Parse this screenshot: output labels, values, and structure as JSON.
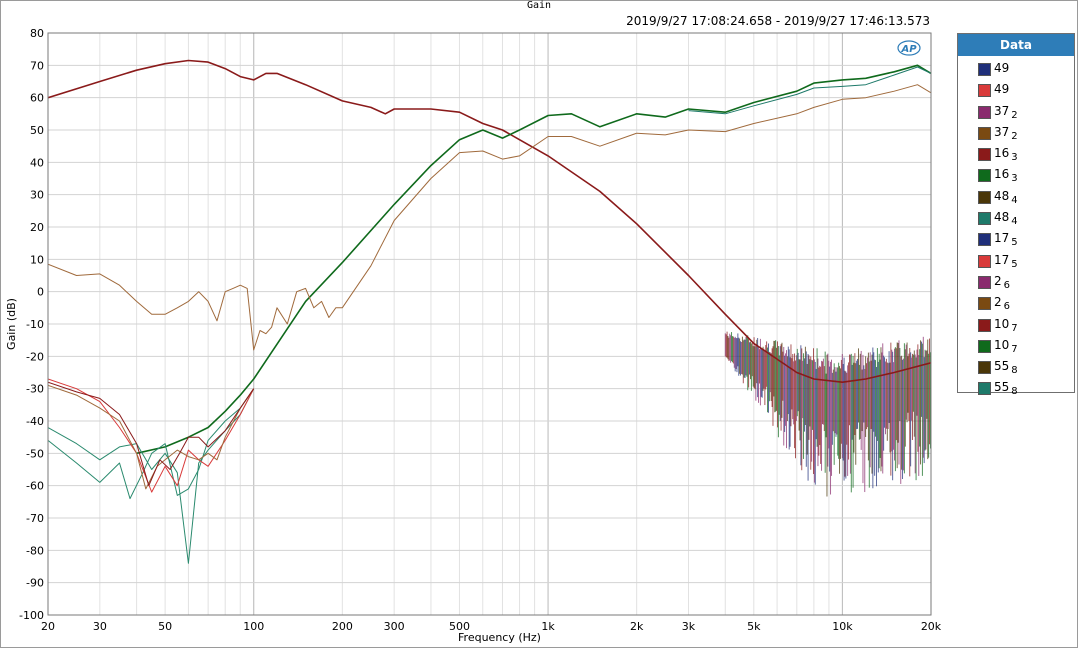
{
  "window": {
    "title": "Gain",
    "timestamp": "2019/9/27 17:08:24.658 - 2019/9/27 17:46:13.573",
    "logo_text": "AP"
  },
  "legend": {
    "header": "Data",
    "items": [
      {
        "name": "49",
        "sub": "",
        "color": "#1f2f7a"
      },
      {
        "name": "49",
        "sub": "",
        "color": "#d93a3a"
      },
      {
        "name": "37",
        "sub": "2",
        "color": "#8a2a6e"
      },
      {
        "name": "37",
        "sub": "2",
        "color": "#7a4a12"
      },
      {
        "name": "16",
        "sub": "3",
        "color": "#8a1a1a"
      },
      {
        "name": "16",
        "sub": "3",
        "color": "#0f6a1c"
      },
      {
        "name": "48",
        "sub": "4",
        "color": "#4a3608"
      },
      {
        "name": "48",
        "sub": "4",
        "color": "#1e7a6a"
      },
      {
        "name": "17",
        "sub": "5",
        "color": "#1f2f7a"
      },
      {
        "name": "17",
        "sub": "5",
        "color": "#d93a3a"
      },
      {
        "name": "2",
        "sub": "6",
        "color": "#8a2a6e"
      },
      {
        "name": "2",
        "sub": "6",
        "color": "#7a4a12"
      },
      {
        "name": "10",
        "sub": "7",
        "color": "#8a1a1a"
      },
      {
        "name": "10",
        "sub": "7",
        "color": "#0f6a1c"
      },
      {
        "name": "55",
        "sub": "8",
        "color": "#4a3608"
      },
      {
        "name": "55",
        "sub": "8",
        "color": "#1e7a6a"
      }
    ]
  },
  "chart_data": {
    "type": "line",
    "title": "Gain",
    "xlabel": "Frequency (Hz)",
    "ylabel": "Gain (dB)",
    "xscale": "log",
    "xlim": [
      20,
      20000
    ],
    "ylim": [
      -100,
      80
    ],
    "grid": true,
    "legend_position": "right",
    "x_ticks": [
      20,
      30,
      50,
      100,
      200,
      300,
      500,
      1000,
      2000,
      3000,
      5000,
      10000,
      20000
    ],
    "x_tick_labels": [
      "20",
      "30",
      "50",
      "100",
      "200",
      "300",
      "500",
      "1k",
      "2k",
      "3k",
      "5k",
      "10k",
      "20k"
    ],
    "y_ticks": [
      -100,
      -90,
      -80,
      -70,
      -60,
      -50,
      -40,
      -30,
      -20,
      -10,
      0,
      10,
      20,
      30,
      40,
      50,
      60,
      70,
      80
    ],
    "series": [
      {
        "name": "16 3",
        "color": "#8a1a1a",
        "width": 1.6,
        "x": [
          20,
          30,
          40,
          50,
          60,
          70,
          80,
          90,
          100,
          110,
          120,
          150,
          200,
          250,
          280,
          300,
          350,
          400,
          500,
          600,
          700,
          800,
          1000,
          1500,
          2000,
          3000,
          4000,
          5000,
          7000,
          8000,
          10000,
          12000,
          15000,
          20000
        ],
        "y": [
          60,
          65,
          68.5,
          70.5,
          71.5,
          71,
          69,
          66.5,
          65.5,
          67.5,
          67.5,
          64,
          59,
          57,
          55,
          56.5,
          56.5,
          56.5,
          55.5,
          52,
          50,
          47,
          42,
          31,
          21,
          5,
          -7,
          -16,
          -25,
          -27,
          -28,
          -27,
          -25,
          -22
        ]
      },
      {
        "name": "10 7",
        "color": "#0f6a1c",
        "width": 1.6,
        "x": [
          40,
          50,
          60,
          70,
          80,
          90,
          100,
          150,
          200,
          300,
          400,
          500,
          600,
          700,
          800,
          1000,
          1200,
          1500,
          2000,
          2500,
          3000,
          4000,
          5000,
          7000,
          8000,
          10000,
          12000,
          15000,
          18000,
          20000
        ],
        "y": [
          -50,
          -48,
          -45,
          -42,
          -37,
          -32,
          -27,
          -3,
          9,
          27,
          39,
          47,
          50,
          47.5,
          50,
          54.5,
          55,
          51,
          55,
          54,
          56.5,
          55.5,
          58.5,
          62,
          64.5,
          65.5,
          66,
          68,
          70,
          67.5
        ]
      },
      {
        "name": "55 8",
        "color": "#1e7a6a",
        "width": 1,
        "x": [
          3000,
          4000,
          5000,
          7000,
          8000,
          10000,
          12000,
          15000,
          18000,
          20000
        ],
        "y": [
          56,
          55,
          57.5,
          61,
          63,
          63.5,
          64,
          67,
          69.5,
          67.5
        ]
      },
      {
        "name": "37 2",
        "color": "#a06a3c",
        "width": 1,
        "x": [
          20,
          25,
          30,
          35,
          40,
          45,
          50,
          55,
          60,
          65,
          70,
          75,
          80,
          85,
          90,
          95,
          100,
          105,
          110,
          115,
          120,
          130,
          140,
          150,
          160,
          170,
          180,
          190,
          200,
          250,
          300,
          400,
          500,
          600,
          700,
          800,
          1000,
          1200,
          1500,
          2000,
          2500,
          3000,
          4000,
          5000,
          7000,
          8000,
          10000,
          12000,
          15000,
          18000,
          20000
        ],
        "y": [
          8.5,
          5,
          5.5,
          2,
          -3,
          -7,
          -7,
          -5,
          -3,
          0,
          -3,
          -9,
          0,
          1,
          2,
          1,
          -18,
          -12,
          -13,
          -11,
          -5,
          -10,
          0,
          1,
          -5,
          -3,
          -8,
          -5,
          -5,
          8,
          22,
          35,
          43,
          43.5,
          41,
          42,
          48,
          48,
          45,
          49,
          48.5,
          50,
          49.5,
          52,
          55,
          57,
          59.5,
          60,
          62,
          64,
          61.5
        ]
      },
      {
        "name": "48 4",
        "color": "#2a8a6e",
        "width": 1,
        "x": [
          20,
          25,
          30,
          35,
          40,
          45,
          50,
          55,
          60,
          65,
          70,
          80,
          90,
          100
        ],
        "y": [
          -42,
          -47,
          -52,
          -48,
          -47,
          -55,
          -50,
          -56,
          -84,
          -53,
          -49,
          -43,
          -38,
          -30
        ]
      },
      {
        "name": "48 4",
        "color": "#2a8a6e",
        "width": 1,
        "x": [
          20,
          25,
          30,
          35,
          38,
          42,
          45,
          50,
          55,
          60,
          65,
          70,
          80,
          90,
          100
        ],
        "y": [
          -46,
          -53,
          -59,
          -53,
          -64,
          -56,
          -50,
          -47,
          -63,
          -61,
          -55,
          -46,
          -40,
          -36,
          -30
        ]
      },
      {
        "name": "49",
        "color": "#d93a3a",
        "width": 1,
        "x": [
          20,
          25,
          30,
          35,
          40,
          45,
          50,
          55,
          60,
          65,
          70,
          80,
          90,
          100
        ],
        "y": [
          -27,
          -30,
          -34,
          -42,
          -50,
          -62,
          -54,
          -60,
          -49,
          -52,
          -54,
          -46,
          -38,
          -30
        ]
      },
      {
        "name": "37 2",
        "color": "#a06a3c",
        "width": 1,
        "x": [
          20,
          25,
          30,
          35,
          40,
          43,
          47,
          50,
          55,
          60,
          65,
          70,
          75,
          80,
          90,
          100
        ],
        "y": [
          -29,
          -32,
          -36,
          -40,
          -50,
          -61,
          -54,
          -52,
          -49,
          -51,
          -52,
          -50,
          -52,
          -45,
          -36,
          -30
        ]
      },
      {
        "name": "16 3",
        "color": "#8a1a1a",
        "width": 1,
        "x": [
          20,
          25,
          30,
          35,
          40,
          44,
          48,
          52,
          56,
          60,
          65,
          70,
          80,
          90,
          100
        ],
        "y": [
          -28,
          -31,
          -33,
          -38,
          -47,
          -60,
          -52,
          -55,
          -50,
          -45,
          -45,
          -48,
          -43,
          -36,
          -30
        ]
      }
    ]
  }
}
